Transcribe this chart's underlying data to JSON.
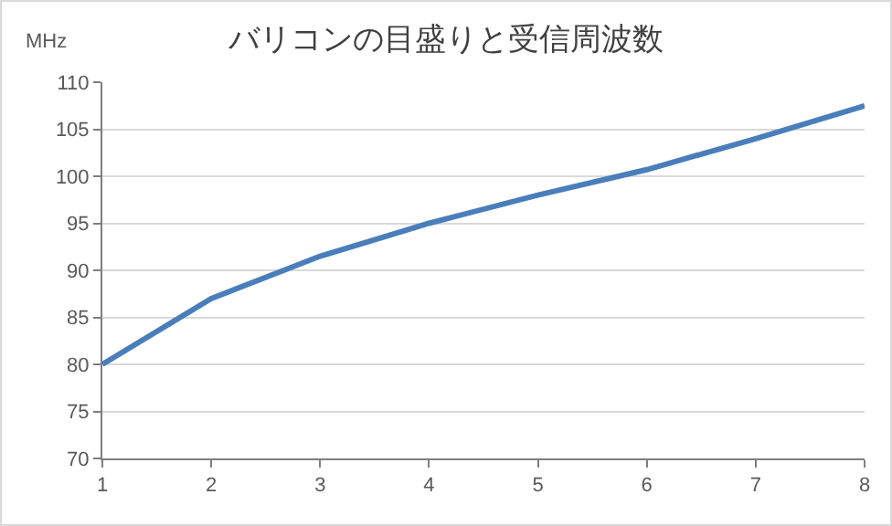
{
  "chart_data": {
    "type": "line",
    "title": "バリコンの目盛りと受信周波数",
    "ylabel": "MHz",
    "x": [
      1,
      2,
      3,
      4,
      5,
      6,
      7,
      8
    ],
    "series": [
      {
        "color": "#4a7ebb",
        "values": [
          80,
          87,
          91.5,
          95,
          98,
          100.7,
          104,
          107.5
        ]
      }
    ],
    "xlim": [
      1,
      8
    ],
    "xticks": [
      1,
      2,
      3,
      4,
      5,
      6,
      7,
      8
    ],
    "ylim": [
      70,
      110
    ],
    "yticks": [
      70,
      75,
      80,
      85,
      90,
      95,
      100,
      105,
      110
    ],
    "grid": "y",
    "legend": false,
    "marker": "none",
    "line_style": "solid"
  }
}
